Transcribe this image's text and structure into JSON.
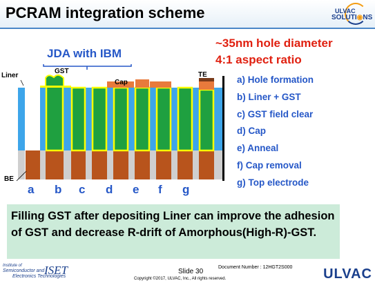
{
  "header": {
    "title": "PCRAM integration scheme"
  },
  "logo": {
    "line1": "ULVAC",
    "line2": "SOLUTI",
    "line3": "NS"
  },
  "callout": {
    "line1": "~35nm hole diameter",
    "line2": "4:1 aspect ratio"
  },
  "diagram": {
    "jda_label": "JDA with IBM",
    "labels": {
      "liner": "Liner",
      "gst": "GST",
      "cap": "Cap",
      "te": "TE",
      "be": "BE"
    },
    "stage_letters": [
      "a",
      "b",
      "c",
      "d",
      "e",
      "f",
      "g"
    ]
  },
  "steps": [
    "a)  Hole formation",
    "b)  Liner + GST",
    "c)  GST field clear",
    "d)  Cap",
    "e)  Anneal",
    "f)  Cap removal",
    "g)  Top electrode"
  ],
  "note": "Filling GST after depositing Liner can improve the adhesion of GST and decrease R-drift of Amorphous(High-R)-GST.",
  "footer": {
    "inst_line1": "Institute of",
    "inst_line2": "Semiconductor and",
    "inst_line3": "Electronics Technologies",
    "iset": "ISET",
    "slide": "Slide 30",
    "docnum": "Document Number : 12HGT2S000",
    "copyright": "Copyright ©2017, ULVAC, Inc., All rights reserved.",
    "ulvac": "ULVAC"
  },
  "colors": {
    "accent_blue": "#2557c7",
    "green_gst": "#1fa040",
    "orange_cap": "#e87a3c",
    "brown_be": "#b8541c",
    "liner_yellow": "#ffff00",
    "column_blue": "#3da5ea",
    "red_text": "#e02010",
    "note_bg": "#ccebd9"
  }
}
